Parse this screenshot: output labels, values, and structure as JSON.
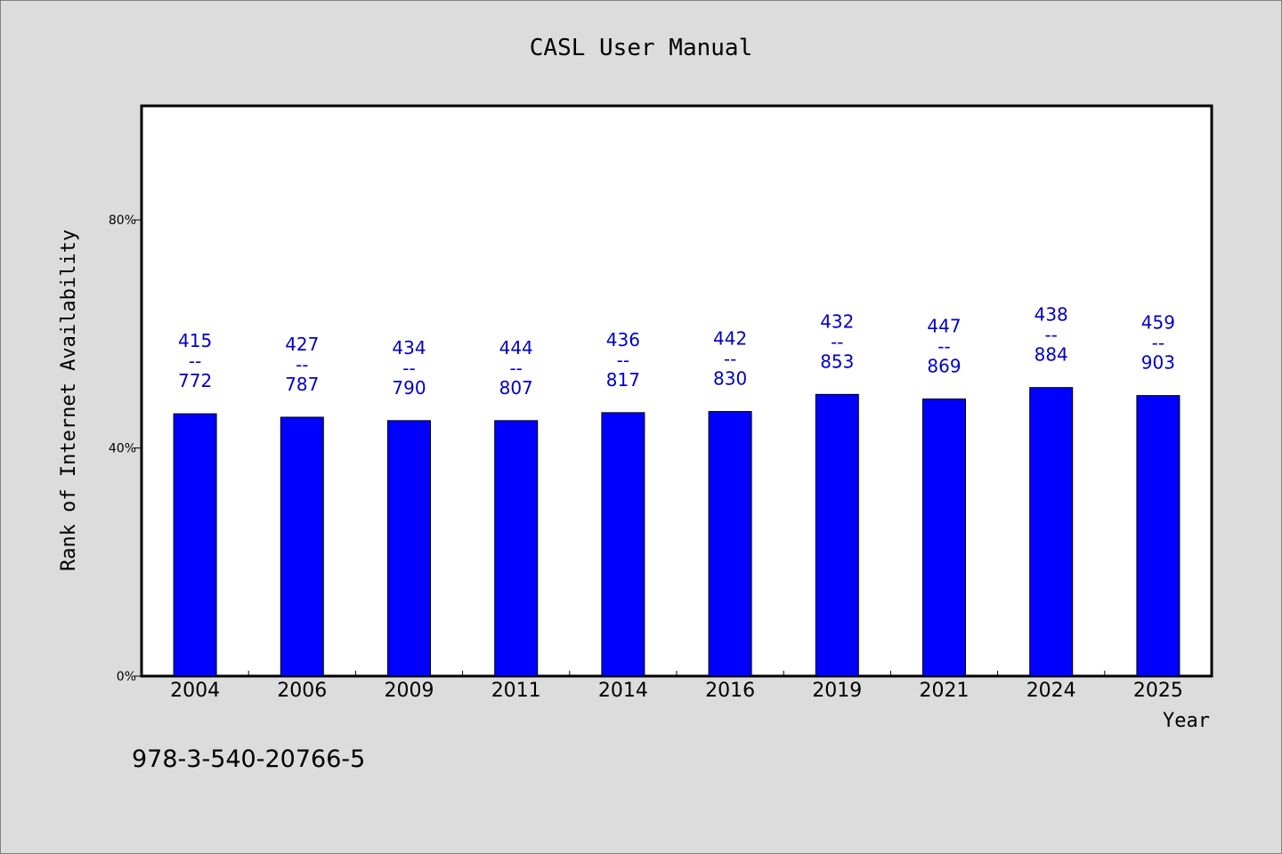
{
  "chart_data": {
    "type": "bar",
    "title": "CASL User Manual",
    "xlabel": "Year",
    "ylabel": "Rank of Internet Availability",
    "ylim": [
      0,
      100
    ],
    "yticks": [
      0,
      40,
      80
    ],
    "ytick_labels": [
      "0%",
      "40%",
      "80%"
    ],
    "categories": [
      "2004",
      "2006",
      "2009",
      "2011",
      "2014",
      "2016",
      "2019",
      "2021",
      "2024",
      "2025"
    ],
    "values": [
      46,
      45.4,
      44.8,
      44.8,
      46.2,
      46.4,
      49.4,
      48.6,
      50.6,
      49.2
    ],
    "annotations": [
      {
        "top": "415",
        "mid": "--",
        "bottom": "772"
      },
      {
        "top": "427",
        "mid": "--",
        "bottom": "787"
      },
      {
        "top": "434",
        "mid": "--",
        "bottom": "790"
      },
      {
        "top": "444",
        "mid": "--",
        "bottom": "807"
      },
      {
        "top": "436",
        "mid": "--",
        "bottom": "817"
      },
      {
        "top": "442",
        "mid": "--",
        "bottom": "830"
      },
      {
        "top": "432",
        "mid": "--",
        "bottom": "853"
      },
      {
        "top": "447",
        "mid": "--",
        "bottom": "869"
      },
      {
        "top": "438",
        "mid": "--",
        "bottom": "884"
      },
      {
        "top": "459",
        "mid": "--",
        "bottom": "903"
      }
    ],
    "grid": false,
    "bar_color": "#0000ff",
    "label_color": "#0000c8"
  },
  "footer": {
    "isbn": "978-3-540-20766-5"
  }
}
